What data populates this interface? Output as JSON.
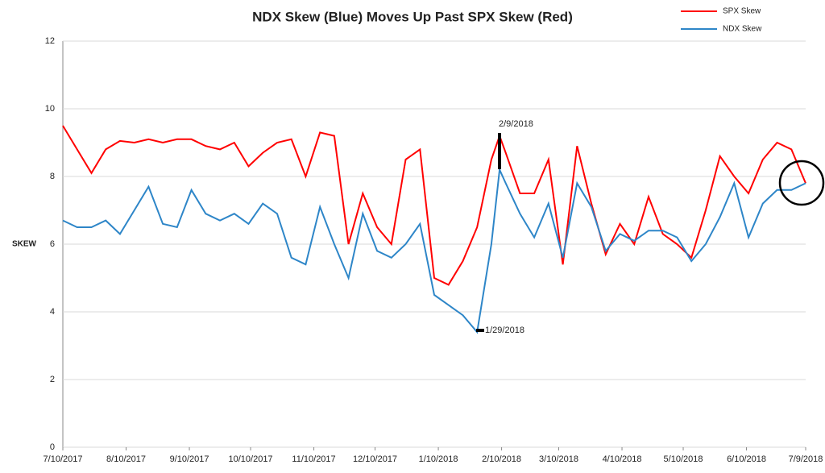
{
  "chart_data": {
    "type": "line",
    "title": "NDX Skew (Blue) Moves Up Past SPX Skew (Red)",
    "y_label": "SKEW",
    "x": [
      "7/10/2017",
      "7/17/2017",
      "7/24/2017",
      "7/31/2017",
      "8/7/2017",
      "8/14/2017",
      "8/21/2017",
      "8/28/2017",
      "9/4/2017",
      "9/11/2017",
      "9/18/2017",
      "9/25/2017",
      "10/2/2017",
      "10/9/2017",
      "10/16/2017",
      "10/23/2017",
      "10/30/2017",
      "11/6/2017",
      "11/13/2017",
      "11/20/2017",
      "11/27/2017",
      "12/4/2017",
      "12/11/2017",
      "12/18/2017",
      "12/25/2017",
      "1/1/2018",
      "1/8/2018",
      "1/15/2018",
      "1/22/2018",
      "1/29/2018",
      "2/5/2018",
      "2/9/2018",
      "2/12/2018",
      "2/19/2018",
      "2/26/2018",
      "3/5/2018",
      "3/12/2018",
      "3/19/2018",
      "3/26/2018",
      "4/2/2018",
      "4/9/2018",
      "4/16/2018",
      "4/23/2018",
      "4/30/2018",
      "5/7/2018",
      "5/14/2018",
      "5/21/2018",
      "5/28/2018",
      "6/4/2018",
      "6/11/2018",
      "6/18/2018",
      "6/25/2018",
      "7/2/2018",
      "7/9/2018"
    ],
    "series": [
      {
        "name": "SPX Skew",
        "color": "#ff0000",
        "values": [
          9.5,
          8.8,
          8.1,
          8.8,
          9.05,
          9.0,
          9.1,
          9.0,
          9.1,
          9.1,
          8.9,
          8.8,
          9.0,
          8.3,
          8.7,
          9.0,
          9.1,
          8.0,
          9.3,
          9.2,
          6.0,
          7.5,
          6.5,
          6.0,
          8.5,
          8.8,
          5.0,
          4.8,
          5.5,
          6.5,
          8.5,
          9.2,
          8.7,
          7.5,
          7.5,
          8.5,
          5.4,
          8.9,
          7.2,
          5.7,
          6.6,
          6.0,
          7.4,
          6.3,
          6.0,
          5.6,
          7.0,
          8.6,
          8.0,
          7.5,
          8.5,
          9.0,
          8.8,
          7.8
        ]
      },
      {
        "name": "NDX Skew",
        "color": "#2e86c8",
        "values": [
          6.7,
          6.5,
          6.5,
          6.7,
          6.3,
          7.0,
          7.7,
          6.6,
          6.5,
          7.6,
          6.9,
          6.7,
          6.9,
          6.6,
          7.2,
          6.9,
          5.6,
          5.4,
          7.1,
          6.0,
          5.0,
          6.9,
          5.8,
          5.6,
          6.0,
          6.6,
          4.5,
          4.2,
          3.9,
          3.4,
          6.0,
          8.2,
          7.8,
          6.9,
          6.2,
          7.2,
          5.6,
          7.8,
          7.1,
          5.8,
          6.3,
          6.1,
          6.4,
          6.4,
          6.2,
          5.5,
          6.0,
          6.8,
          7.8,
          6.2,
          7.2,
          7.6,
          7.6,
          7.8
        ]
      }
    ],
    "ylim": [
      0,
      12
    ],
    "yticks": [
      0,
      2,
      4,
      6,
      8,
      10,
      12
    ],
    "grid": true,
    "xlim": [
      "7/10/2017",
      "7/9/2018"
    ],
    "xticks": [
      "7/10/2017",
      "8/10/2017",
      "9/10/2017",
      "10/10/2017",
      "11/10/2017",
      "12/10/2017",
      "1/10/2018",
      "2/10/2018",
      "3/10/2018",
      "4/10/2018",
      "5/10/2018",
      "6/10/2018",
      "7/9/2018"
    ],
    "legend": "top-right",
    "annotations": [
      {
        "text": "2/9/2018"
      },
      {
        "text": "1/29/2018"
      }
    ]
  }
}
